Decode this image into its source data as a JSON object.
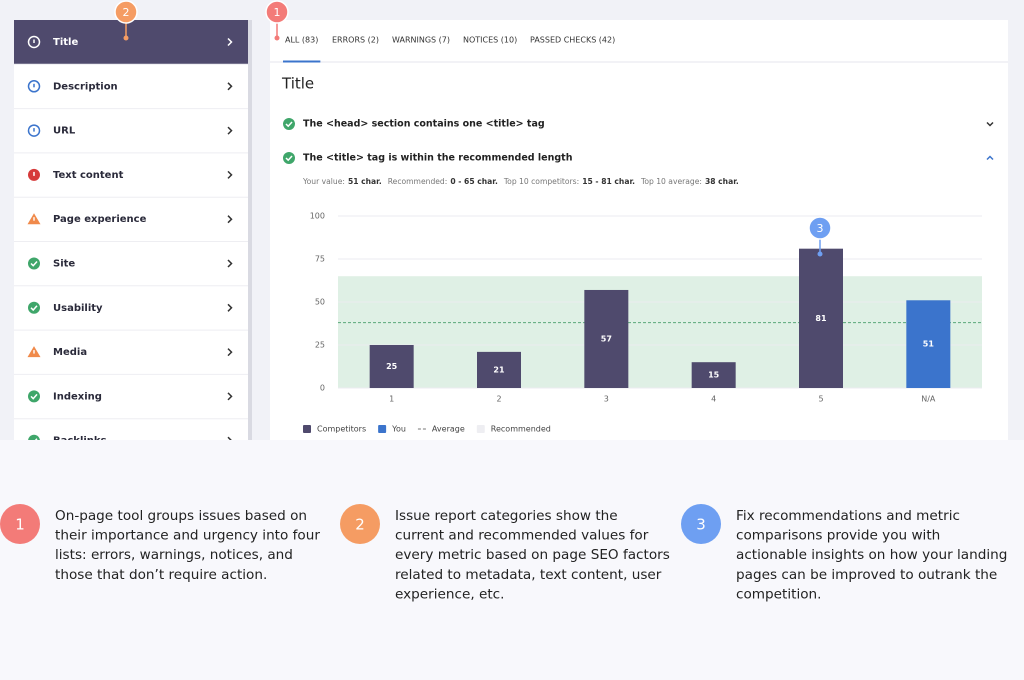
{
  "sidebar": {
    "items": [
      {
        "label": "Title",
        "status": "info",
        "active": true
      },
      {
        "label": "Description",
        "status": "info",
        "active": false
      },
      {
        "label": "URL",
        "status": "info",
        "active": false
      },
      {
        "label": "Text content",
        "status": "error",
        "active": false
      },
      {
        "label": "Page experience",
        "status": "warning",
        "active": false
      },
      {
        "label": "Site",
        "status": "pass",
        "active": false
      },
      {
        "label": "Usability",
        "status": "pass",
        "active": false
      },
      {
        "label": "Media",
        "status": "warning",
        "active": false
      },
      {
        "label": "Indexing",
        "status": "pass",
        "active": false
      },
      {
        "label": "Backlinks",
        "status": "pass",
        "active": false
      }
    ]
  },
  "tabs": [
    "ALL (83)",
    "ERRORS (2)",
    "WARNINGS (7)",
    "NOTICES (10)",
    "PASSED CHECKS (42)"
  ],
  "heading": "Title",
  "checks": [
    {
      "label": "The <head> section contains one <title> tag",
      "expanded": false
    },
    {
      "label": "The <title> tag is within the recommended length",
      "expanded": true
    }
  ],
  "details": [
    {
      "label": "Your value:",
      "value": "51 char."
    },
    {
      "label": "Recommended:",
      "value": "0 - 65 char."
    },
    {
      "label": "Top 10 competitors:",
      "value": "15 - 81 char."
    },
    {
      "label": "Top 10 average:",
      "value": "38 char."
    }
  ],
  "chart_data": {
    "type": "bar",
    "categories": [
      "1",
      "2",
      "3",
      "4",
      "5",
      "N/A"
    ],
    "series": [
      {
        "name": "Competitors",
        "color": "#4f4a6d",
        "values": [
          25,
          21,
          57,
          15,
          81,
          null
        ]
      },
      {
        "name": "You",
        "color": "#3b74cc",
        "values": [
          null,
          null,
          null,
          null,
          null,
          51
        ]
      }
    ],
    "average": {
      "name": "Average",
      "value": 38,
      "color": "#5aa87a"
    },
    "recommended": {
      "name": "Recommended",
      "range": [
        0,
        65
      ],
      "color": "#dff0e5"
    },
    "ylim": [
      0,
      100
    ],
    "yticks": [
      0,
      25,
      50,
      75,
      100
    ],
    "grid": true
  },
  "annotations": [
    {
      "number": "1",
      "color": "#f37b78"
    },
    {
      "number": "2",
      "color": "#f59c63"
    },
    {
      "number": "3",
      "color": "#6e9ff2"
    }
  ],
  "captions": [
    {
      "number": "1",
      "color": "#f37b78",
      "lines": [
        "On-page tool groups issues based on",
        "their importance and urgency into four",
        "lists: errors, warnings, notices, and",
        "those that don’t require action."
      ]
    },
    {
      "number": "2",
      "color": "#f59c63",
      "lines": [
        "Issue report categories show the",
        "current and recommended values for",
        "every metric based on page SEO factors",
        "related to metadata, text content, user",
        "experience, etc."
      ]
    },
    {
      "number": "3",
      "color": "#6e9ff2",
      "lines": [
        "Fix recommendations and metric",
        "comparisons provide you with",
        "actionable insights on how your landing",
        "pages can be improved to outrank the",
        "competition."
      ]
    }
  ]
}
